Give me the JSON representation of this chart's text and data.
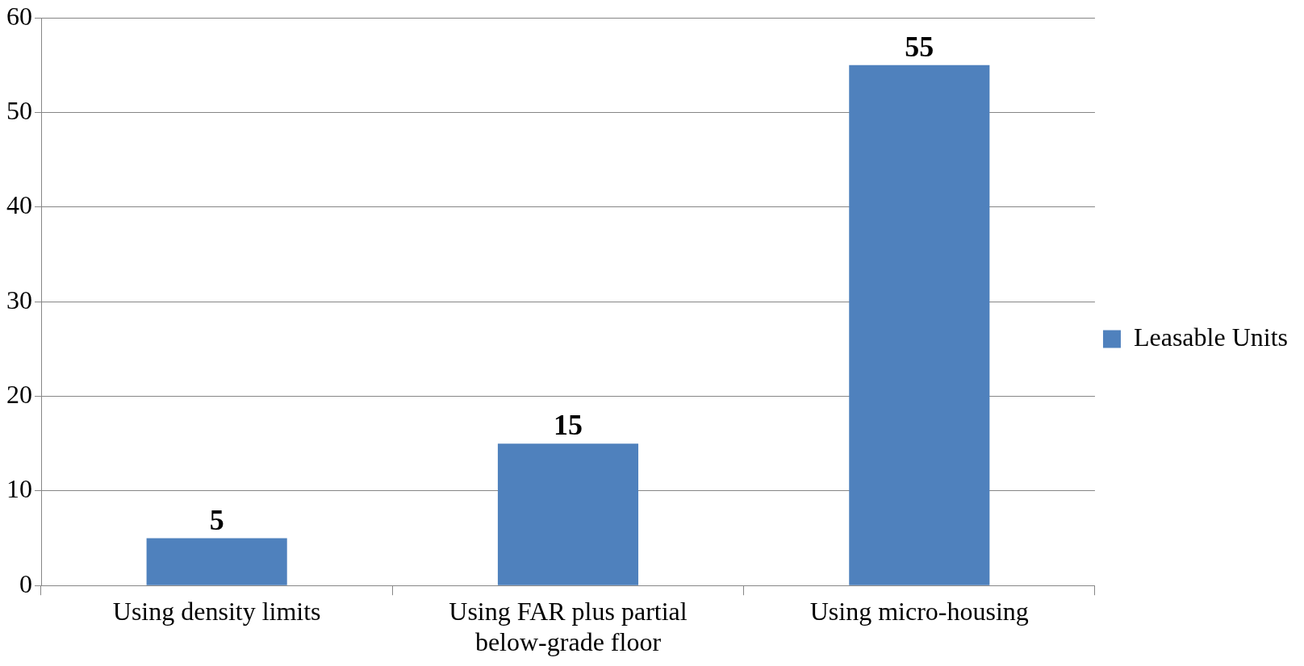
{
  "chart_data": {
    "type": "bar",
    "categories": [
      "Using density limits",
      "Using FAR plus partial below-grade floor",
      "Using micro-housing"
    ],
    "series": [
      {
        "name": "Leasable Units",
        "color": "#4f81bd",
        "values": [
          5,
          15,
          55
        ]
      }
    ],
    "ylim": [
      0,
      60
    ],
    "yticks": [
      0,
      10,
      20,
      30,
      40,
      50,
      60
    ],
    "grid": "y",
    "legend": "right",
    "data_labels": true
  }
}
